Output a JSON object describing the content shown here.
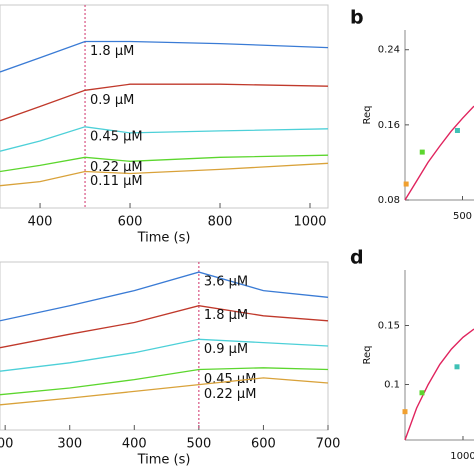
{
  "chart_data": [
    {
      "type": "line",
      "xlabel": "Time (s)",
      "xlim": [
        311,
        1040
      ],
      "xticks": [
        400,
        600,
        800,
        1000
      ],
      "ylim": [
        0,
        100
      ],
      "marker_x": 500,
      "x": [
        311,
        400,
        500,
        600,
        800,
        1040
      ],
      "series": [
        {
          "name": "1.8 μM",
          "color": "#3a7bd5",
          "values": [
            67,
            74,
            82,
            82,
            81,
            79
          ]
        },
        {
          "name": "0.9 μM",
          "color": "#c0392b",
          "values": [
            43,
            50,
            58,
            61,
            61,
            60
          ]
        },
        {
          "name": "0.45 μM",
          "color": "#4dd0d8",
          "values": [
            28,
            33,
            40,
            37,
            38,
            39
          ]
        },
        {
          "name": "0.22 μM",
          "color": "#5cd62e",
          "values": [
            18,
            21,
            25,
            23,
            25,
            26
          ]
        },
        {
          "name": "0.11 μM",
          "color": "#d9a23a",
          "values": [
            11,
            13,
            18,
            17,
            19,
            22
          ]
        }
      ]
    },
    {
      "type": "scatter",
      "panel_label": "b",
      "ylabel": "Req",
      "xlim": [
        0,
        6000
      ],
      "xticks": [
        {
          "value": 5000,
          "label": "500"
        }
      ],
      "ylim": [
        0.08,
        0.261
      ],
      "yticks": [
        0.08,
        0.16,
        0.24
      ],
      "points": {
        "x": [
          100,
          1500,
          4560
        ],
        "values": [
          0.097,
          0.131,
          0.154
        ],
        "colors": [
          "#f0a030",
          "#5cd62e",
          "#3fc1b5"
        ]
      },
      "fit": {
        "color": "#e0245e",
        "x": [
          0,
          1000,
          2000,
          3000,
          4000,
          5000,
          6000
        ],
        "values": [
          0.08,
          0.1,
          0.12,
          0.137,
          0.153,
          0.167,
          0.18
        ]
      }
    },
    {
      "type": "line",
      "xlabel": "Time (s)",
      "xlim": [
        192,
        700
      ],
      "xticks": [
        {
          "value": 200,
          "label": "00"
        },
        300,
        400,
        500,
        600,
        700
      ],
      "ylim": [
        0,
        100
      ],
      "marker_x": 500,
      "x": [
        192,
        300,
        400,
        500,
        600,
        700
      ],
      "series": [
        {
          "name": "3.6 μM",
          "color": "#3a7bd5",
          "values": [
            65,
            74,
            83,
            94,
            83,
            79
          ]
        },
        {
          "name": "1.8 μM",
          "color": "#c0392b",
          "values": [
            49,
            57,
            64,
            74,
            68,
            65
          ]
        },
        {
          "name": "0.9 μM",
          "color": "#4dd0d8",
          "values": [
            35,
            40,
            46,
            54,
            52,
            50
          ]
        },
        {
          "name": "0.45 μM",
          "color": "#5cd62e",
          "values": [
            21,
            25,
            30,
            36,
            37,
            36
          ]
        },
        {
          "name": "0.22 μM",
          "color": "#d9a23a",
          "values": [
            15,
            19,
            23,
            27,
            31,
            28
          ]
        }
      ]
    },
    {
      "type": "scatter",
      "panel_label": "d",
      "ylabel": "Req",
      "xlim": [
        0,
        11900
      ],
      "xticks": [
        {
          "value": 10000,
          "label": "1000"
        }
      ],
      "ylim": [
        0.053,
        0.197
      ],
      "yticks": [
        0.1,
        0.15
      ],
      "points": {
        "x": [
          0,
          2930,
          8970
        ],
        "values": [
          0.077,
          0.093,
          0.115
        ],
        "colors": [
          "#f0a030",
          "#5cd62e",
          "#3fc1b5"
        ]
      },
      "fit": {
        "color": "#e0245e",
        "x": [
          0,
          2000,
          4000,
          6000,
          8000,
          10000,
          11900
        ],
        "values": [
          0.053,
          0.08,
          0.1,
          0.117,
          0.13,
          0.14,
          0.147
        ]
      }
    }
  ]
}
